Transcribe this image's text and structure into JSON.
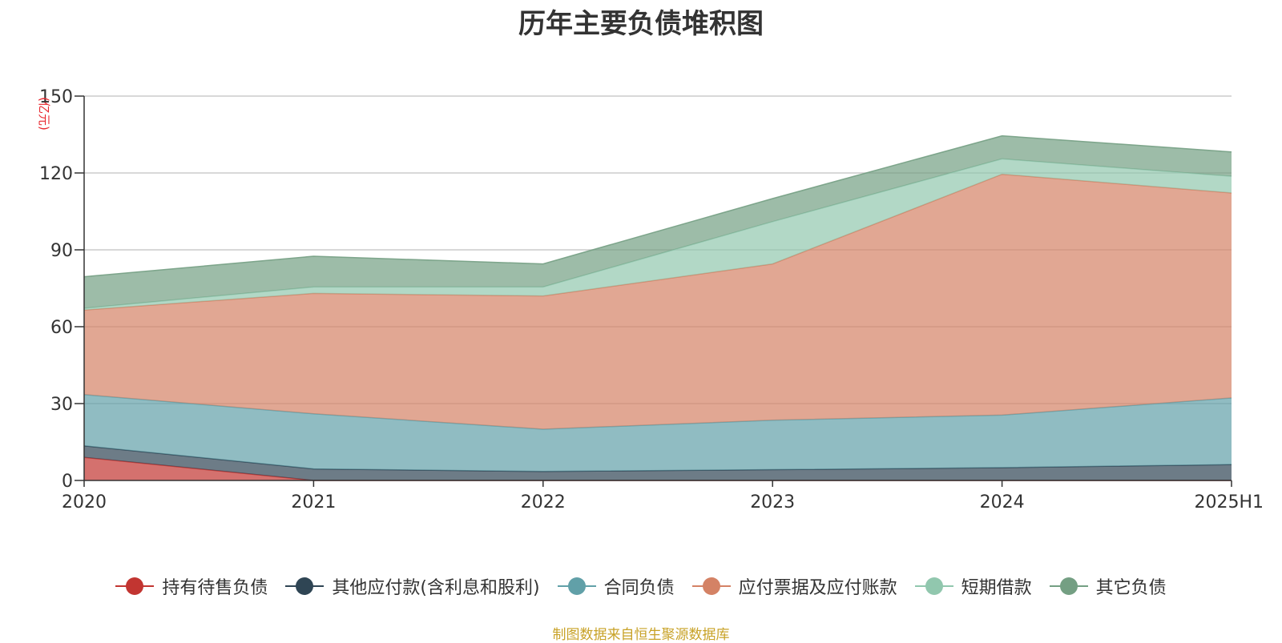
{
  "chart_data": {
    "type": "area",
    "stacked": true,
    "title": "历年主要负债堆积图",
    "unit_label": "(亿元)",
    "categories": [
      "2020",
      "2021",
      "2022",
      "2023",
      "2024",
      "2025H1"
    ],
    "ylim": [
      0,
      150
    ],
    "yticks": [
      0,
      30,
      60,
      90,
      120,
      150
    ],
    "grid": true,
    "legend_position": "bottom",
    "series": [
      {
        "name": "持有待售负债",
        "color": "#c23531",
        "values": [
          9,
          0,
          0,
          0,
          0,
          0
        ]
      },
      {
        "name": "其他应付款(含利息和股利)",
        "color": "#2f4554",
        "values": [
          4.5,
          4.5,
          3.5,
          4.2,
          5,
          6.2
        ]
      },
      {
        "name": "合同负债",
        "color": "#61a0a8",
        "values": [
          20,
          21.5,
          16.5,
          19.3,
          20.5,
          26
        ]
      },
      {
        "name": "应付票据及应付账款",
        "color": "#d48265",
        "values": [
          33,
          47,
          52,
          61,
          94,
          80
        ]
      },
      {
        "name": "短期借款",
        "color": "#91c7ae",
        "values": [
          0.7,
          2.5,
          3.5,
          16.5,
          6,
          6.5
        ]
      },
      {
        "name": "其它负债",
        "color": "#749f83",
        "values": [
          12.3,
          12,
          9,
          9,
          9,
          9.5
        ]
      }
    ]
  },
  "source_note": "制图数据来自恒生聚源数据库"
}
